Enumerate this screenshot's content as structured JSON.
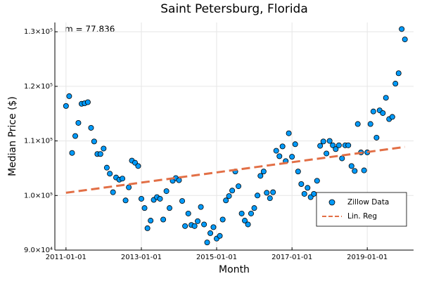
{
  "chart_data": {
    "type": "scatter",
    "title": "Saint Petersburg, Florida",
    "xlabel": "Month",
    "ylabel": "Median Price ($)",
    "annotation": "m = 77.836",
    "xlim": [
      "2010-09-15",
      "2020-03-25"
    ],
    "xticks": [
      "2011-01-01",
      "2013-01-01",
      "2015-01-01",
      "2017-01-01",
      "2019-01-01"
    ],
    "ylim": [
      90000,
      131700
    ],
    "yticks": [
      {
        "value": 90000,
        "label": "9.0×10⁴"
      },
      {
        "value": 100000,
        "label": "1.0×10⁵"
      },
      {
        "value": 110000,
        "label": "1.1×10⁵"
      },
      {
        "value": 120000,
        "label": "1.2×10⁵"
      },
      {
        "value": 130000,
        "label": "1.3×10⁵"
      }
    ],
    "grid": true,
    "legend": "lower right",
    "series": [
      {
        "name": "Zillow Data",
        "type": "scatter",
        "color": "#009af9",
        "x": [
          "2011-01-01",
          "2011-02-01",
          "2011-03-01",
          "2011-04-01",
          "2011-05-01",
          "2011-06-01",
          "2011-07-01",
          "2011-08-01",
          "2011-09-01",
          "2011-10-01",
          "2011-11-01",
          "2011-12-01",
          "2012-01-01",
          "2012-02-01",
          "2012-03-01",
          "2012-04-01",
          "2012-05-01",
          "2012-06-01",
          "2012-07-01",
          "2012-08-01",
          "2012-09-01",
          "2012-10-01",
          "2012-11-01",
          "2012-12-01",
          "2013-01-01",
          "2013-02-01",
          "2013-03-01",
          "2013-04-01",
          "2013-05-01",
          "2013-06-01",
          "2013-07-01",
          "2013-08-01",
          "2013-09-01",
          "2013-10-01",
          "2013-11-01",
          "2013-12-01",
          "2014-01-01",
          "2014-02-01",
          "2014-03-01",
          "2014-04-01",
          "2014-05-01",
          "2014-06-01",
          "2014-07-01",
          "2014-08-01",
          "2014-09-01",
          "2014-10-01",
          "2014-11-01",
          "2014-12-01",
          "2015-01-01",
          "2015-02-01",
          "2015-03-01",
          "2015-04-01",
          "2015-05-01",
          "2015-06-01",
          "2015-07-01",
          "2015-08-01",
          "2015-09-01",
          "2015-10-01",
          "2015-11-01",
          "2015-12-01",
          "2016-01-01",
          "2016-02-01",
          "2016-03-01",
          "2016-04-01",
          "2016-05-01",
          "2016-06-01",
          "2016-07-01",
          "2016-08-01",
          "2016-09-01",
          "2016-10-01",
          "2016-11-01",
          "2016-12-01",
          "2017-01-01",
          "2017-02-01",
          "2017-03-01",
          "2017-04-01",
          "2017-05-01",
          "2017-06-01",
          "2017-07-01",
          "2017-08-01",
          "2017-09-01",
          "2017-10-01",
          "2017-11-01",
          "2017-12-01",
          "2018-01-01",
          "2018-02-01",
          "2018-03-01",
          "2018-04-01",
          "2018-05-01",
          "2018-06-01",
          "2018-07-01",
          "2018-08-01",
          "2018-09-01",
          "2018-10-01",
          "2018-11-01",
          "2018-12-01",
          "2019-01-01",
          "2019-02-01",
          "2019-03-01",
          "2019-04-01",
          "2019-05-01",
          "2019-06-01",
          "2019-07-01",
          "2019-08-01",
          "2019-09-01",
          "2019-10-01",
          "2019-11-01",
          "2019-12-01",
          "2020-01-01"
        ],
        "values": [
          116400,
          118200,
          107800,
          110900,
          113300,
          116800,
          116900,
          117100,
          112400,
          109900,
          107600,
          107600,
          108600,
          105100,
          104000,
          100600,
          103300,
          102900,
          103100,
          99100,
          101500,
          106400,
          106000,
          105400,
          99400,
          97700,
          94000,
          95400,
          99200,
          99700,
          99400,
          95600,
          100800,
          97700,
          102700,
          103200,
          102800,
          99000,
          94400,
          96700,
          94600,
          94400,
          95300,
          97900,
          94700,
          91400,
          93100,
          94200,
          92100,
          92600,
          95600,
          99100,
          99900,
          100900,
          104400,
          101700,
          96700,
          95400,
          94700,
          96700,
          97700,
          100000,
          103600,
          104400,
          100500,
          99500,
          100600,
          108200,
          107200,
          109000,
          106300,
          111400,
          107100,
          109400,
          104400,
          102100,
          100300,
          101400,
          99700,
          100300,
          102700,
          109100,
          109900,
          107700,
          110000,
          109200,
          108500,
          109200,
          106800,
          109200,
          109200,
          105400,
          104500,
          113100,
          107900,
          104600,
          107900,
          113100,
          115400,
          110600,
          115600,
          115100,
          117900,
          114000,
          114400,
          120500,
          122400,
          130500,
          128600
        ]
      },
      {
        "name": "Lin. Reg",
        "type": "line",
        "color": "#e26f46",
        "x": [
          "2011-01-01",
          "2020-01-01"
        ],
        "values": [
          100500,
          108900
        ]
      }
    ]
  }
}
